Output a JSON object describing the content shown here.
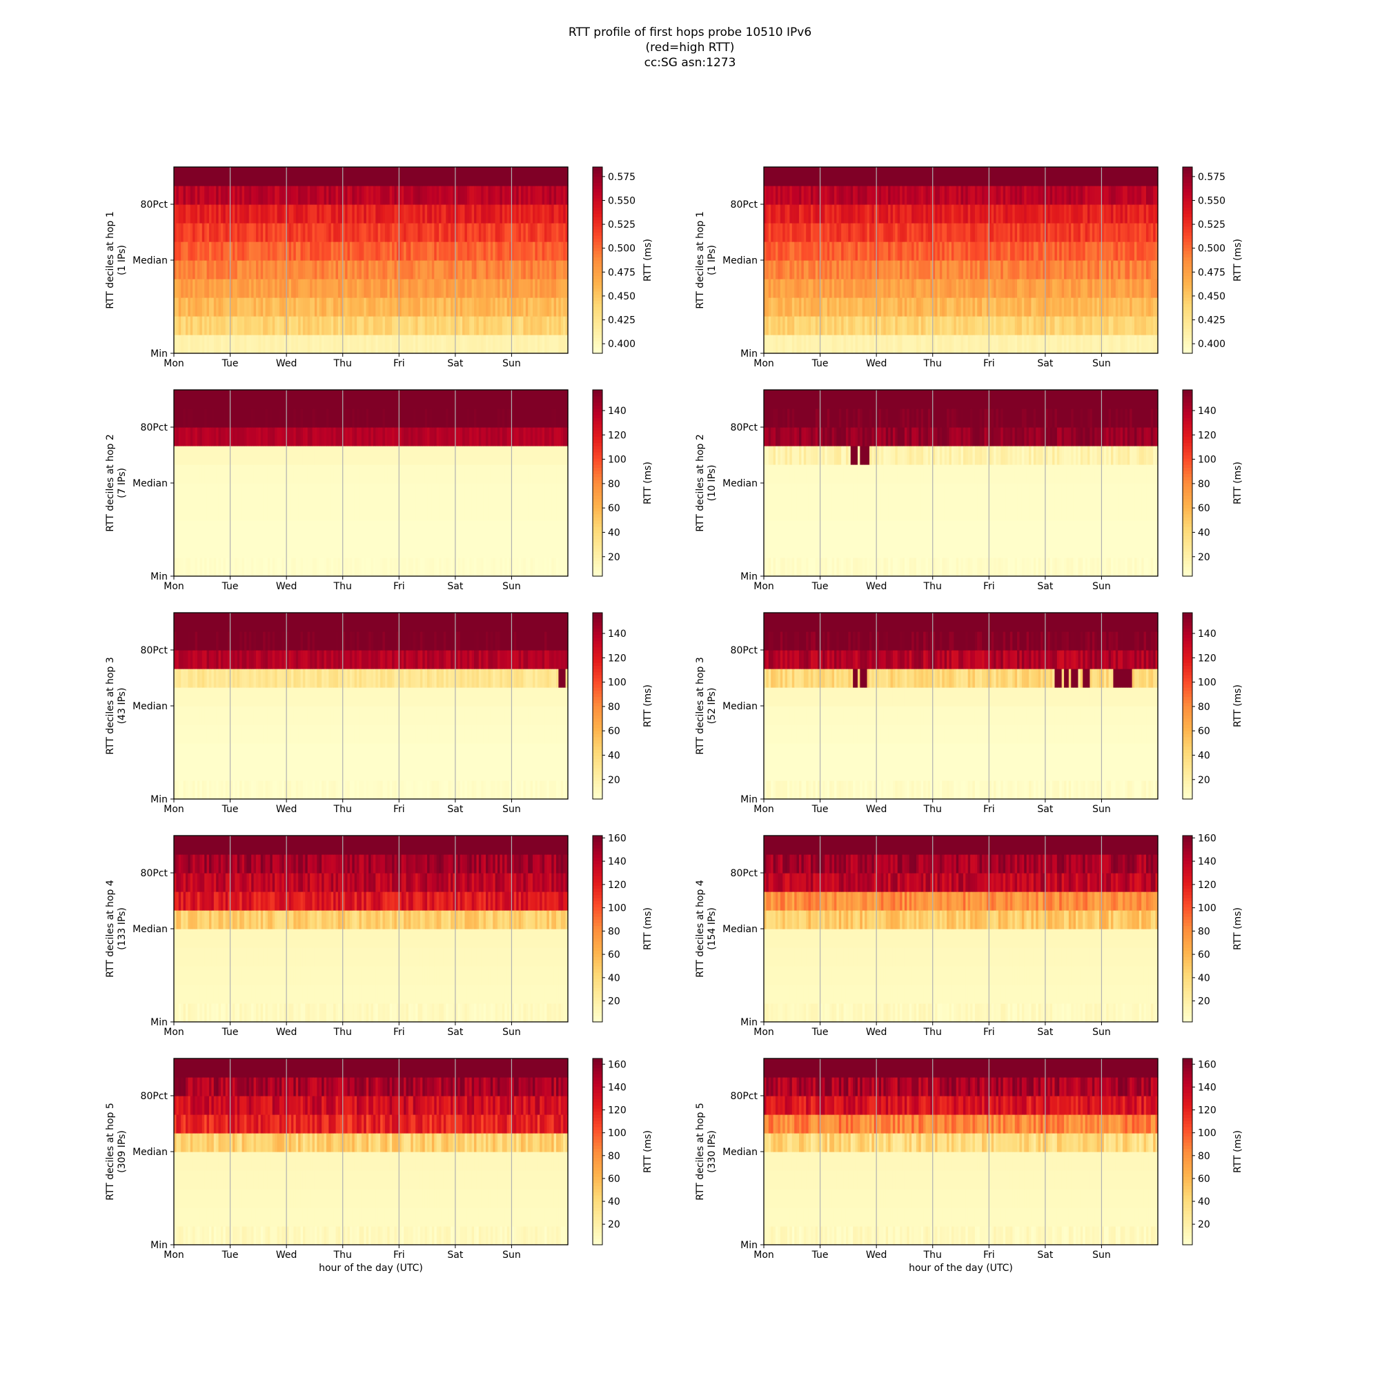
{
  "figure": {
    "title_lines": [
      "RTT profile of first hops probe 10510 IPv6",
      "(red=high RTT)",
      "cc:SG asn:1273"
    ]
  },
  "colors": {
    "colormap": "YlOrRd",
    "stops": [
      "#ffffcc",
      "#ffeda0",
      "#fed976",
      "#feb24c",
      "#fd8d3c",
      "#fc4e2a",
      "#e31a1c",
      "#bd0026",
      "#800026"
    ],
    "grid": "#b0b0b0"
  },
  "chart_data": [
    {
      "type": "heatmap",
      "hop": 1,
      "ip_count": 1,
      "ylabel": "RTT deciles at hop 1\n(1 IPs)",
      "xlabel": "",
      "xticks": [
        "Mon",
        "Tue",
        "Wed",
        "Thu",
        "Fri",
        "Sat",
        "Sun"
      ],
      "yticks": [
        "Min",
        "Median",
        "80Pct"
      ],
      "colorbar_label": "RTT (ms)",
      "colorbar_ticks": [
        0.4,
        0.425,
        0.45,
        0.475,
        0.5,
        0.525,
        0.55,
        0.575
      ],
      "clim": [
        0.39,
        0.585
      ],
      "decile_values": [
        0.405,
        0.44,
        0.46,
        0.475,
        0.49,
        0.505,
        0.52,
        0.535,
        0.56,
        0.59
      ],
      "hot_columns": {},
      "noise": 0.35
    },
    {
      "type": "heatmap",
      "hop": 1,
      "ip_count": 1,
      "ylabel": "RTT deciles at hop 1\n(1 IPs)",
      "xlabel": "",
      "xticks": [
        "Mon",
        "Tue",
        "Wed",
        "Thu",
        "Fri",
        "Sat",
        "Sun"
      ],
      "yticks": [
        "Min",
        "Median",
        "80Pct"
      ],
      "colorbar_label": "RTT (ms)",
      "colorbar_ticks": [
        0.4,
        0.425,
        0.45,
        0.475,
        0.5,
        0.525,
        0.55,
        0.575
      ],
      "clim": [
        0.39,
        0.585
      ],
      "decile_values": [
        0.405,
        0.44,
        0.46,
        0.475,
        0.49,
        0.505,
        0.52,
        0.535,
        0.56,
        0.59
      ],
      "hot_columns": {},
      "noise": 0.35
    },
    {
      "type": "heatmap",
      "hop": 2,
      "ip_count": 7,
      "ylabel": "RTT deciles at hop 2\n(7 IPs)",
      "xlabel": "",
      "xticks": [
        "Mon",
        "Tue",
        "Wed",
        "Thu",
        "Fri",
        "Sat",
        "Sun"
      ],
      "yticks": [
        "Min",
        "Median",
        "80Pct"
      ],
      "colorbar_label": "RTT (ms)",
      "colorbar_ticks": [
        20,
        40,
        60,
        80,
        100,
        120,
        140
      ],
      "clim": [
        4,
        157
      ],
      "decile_values": [
        5,
        5,
        5,
        6,
        6,
        7,
        10,
        140,
        160,
        160
      ],
      "hot_columns": {},
      "noise": 0.2
    },
    {
      "type": "heatmap",
      "hop": 2,
      "ip_count": 10,
      "ylabel": "RTT deciles at hop 2\n(10 IPs)",
      "xlabel": "",
      "xticks": [
        "Mon",
        "Tue",
        "Wed",
        "Thu",
        "Fri",
        "Sat",
        "Sun"
      ],
      "yticks": [
        "Min",
        "Median",
        "80Pct"
      ],
      "colorbar_label": "RTT (ms)",
      "colorbar_ticks": [
        20,
        40,
        60,
        80,
        100,
        120,
        140
      ],
      "clim": [
        4,
        157
      ],
      "decile_values": [
        5,
        5,
        5,
        6,
        6,
        7,
        18,
        150,
        160,
        160
      ],
      "hot_columns": {
        "6": [
          1.55,
          1.6,
          1.75,
          1.8
        ]
      },
      "noise": 0.35
    },
    {
      "type": "heatmap",
      "hop": 3,
      "ip_count": 43,
      "ylabel": "RTT deciles at hop 3\n(43 IPs)",
      "xlabel": "",
      "xticks": [
        "Mon",
        "Tue",
        "Wed",
        "Thu",
        "Fri",
        "Sat",
        "Sun"
      ],
      "yticks": [
        "Min",
        "Median",
        "80Pct"
      ],
      "colorbar_label": "RTT (ms)",
      "colorbar_ticks": [
        20,
        40,
        60,
        80,
        100,
        120,
        140
      ],
      "clim": [
        4,
        157
      ],
      "decile_values": [
        5,
        5,
        5,
        6,
        7,
        9,
        30,
        140,
        160,
        160
      ],
      "hot_columns": {
        "6": [
          6.85,
          6.9
        ]
      },
      "noise": 0.3
    },
    {
      "type": "heatmap",
      "hop": 3,
      "ip_count": 52,
      "ylabel": "RTT deciles at hop 3\n(52 IPs)",
      "xlabel": "",
      "xticks": [
        "Mon",
        "Tue",
        "Wed",
        "Thu",
        "Fri",
        "Sat",
        "Sun"
      ],
      "yticks": [
        "Min",
        "Median",
        "80Pct"
      ],
      "colorbar_label": "RTT (ms)",
      "colorbar_ticks": [
        20,
        40,
        60,
        80,
        100,
        120,
        140
      ],
      "clim": [
        4,
        157
      ],
      "decile_values": [
        5,
        5,
        5,
        6,
        7,
        10,
        40,
        140,
        160,
        160
      ],
      "hot_columns": {
        "6": [
          1.6,
          1.75,
          5.2,
          5.35,
          5.5,
          5.7,
          6.25,
          6.35,
          6.45
        ]
      },
      "noise": 0.45
    },
    {
      "type": "heatmap",
      "hop": 4,
      "ip_count": 133,
      "ylabel": "RTT deciles at hop 4\n(133 IPs)",
      "xlabel": "",
      "xticks": [
        "Mon",
        "Tue",
        "Wed",
        "Thu",
        "Fri",
        "Sat",
        "Sun"
      ],
      "yticks": [
        "Min",
        "Median",
        "80Pct"
      ],
      "colorbar_label": "RTT (ms)",
      "colorbar_ticks": [
        20,
        40,
        60,
        80,
        100,
        120,
        140,
        160
      ],
      "clim": [
        2,
        162
      ],
      "decile_values": [
        6,
        7,
        8,
        9,
        10,
        45,
        125,
        140,
        150,
        165
      ],
      "hot_columns": {},
      "noise": 0.5
    },
    {
      "type": "heatmap",
      "hop": 4,
      "ip_count": 154,
      "ylabel": "RTT deciles at hop 4\n(154 IPs)",
      "xlabel": "",
      "xticks": [
        "Mon",
        "Tue",
        "Wed",
        "Thu",
        "Fri",
        "Sat",
        "Sun"
      ],
      "yticks": [
        "Min",
        "Median",
        "80Pct"
      ],
      "colorbar_label": "RTT (ms)",
      "colorbar_ticks": [
        20,
        40,
        60,
        80,
        100,
        120,
        140,
        160
      ],
      "clim": [
        2,
        162
      ],
      "decile_values": [
        6,
        7,
        8,
        9,
        10,
        50,
        80,
        140,
        150,
        165
      ],
      "hot_columns": {},
      "noise": 0.55
    },
    {
      "type": "heatmap",
      "hop": 5,
      "ip_count": 309,
      "ylabel": "RTT deciles at hop 5\n(309 IPs)",
      "xlabel": "hour of the day (UTC)",
      "xticks": [
        "Mon",
        "Tue",
        "Wed",
        "Thu",
        "Fri",
        "Sat",
        "Sun"
      ],
      "yticks": [
        "Min",
        "Median",
        "80Pct"
      ],
      "colorbar_label": "RTT (ms)",
      "colorbar_ticks": [
        20,
        40,
        60,
        80,
        100,
        120,
        140,
        160
      ],
      "clim": [
        2,
        165
      ],
      "decile_values": [
        6,
        7,
        8,
        9,
        10,
        45,
        120,
        135,
        150,
        170
      ],
      "hot_columns": {},
      "noise": 0.6
    },
    {
      "type": "heatmap",
      "hop": 5,
      "ip_count": 330,
      "ylabel": "RTT deciles at hop 5\n(330 IPs)",
      "xlabel": "hour of the day (UTC)",
      "xticks": [
        "Mon",
        "Tue",
        "Wed",
        "Thu",
        "Fri",
        "Sat",
        "Sun"
      ],
      "yticks": [
        "Min",
        "Median",
        "80Pct"
      ],
      "colorbar_label": "RTT (ms)",
      "colorbar_ticks": [
        20,
        40,
        60,
        80,
        100,
        120,
        140,
        160
      ],
      "clim": [
        2,
        165
      ],
      "decile_values": [
        6,
        7,
        8,
        9,
        10,
        40,
        85,
        130,
        150,
        170
      ],
      "hot_columns": {},
      "noise": 0.6
    }
  ]
}
